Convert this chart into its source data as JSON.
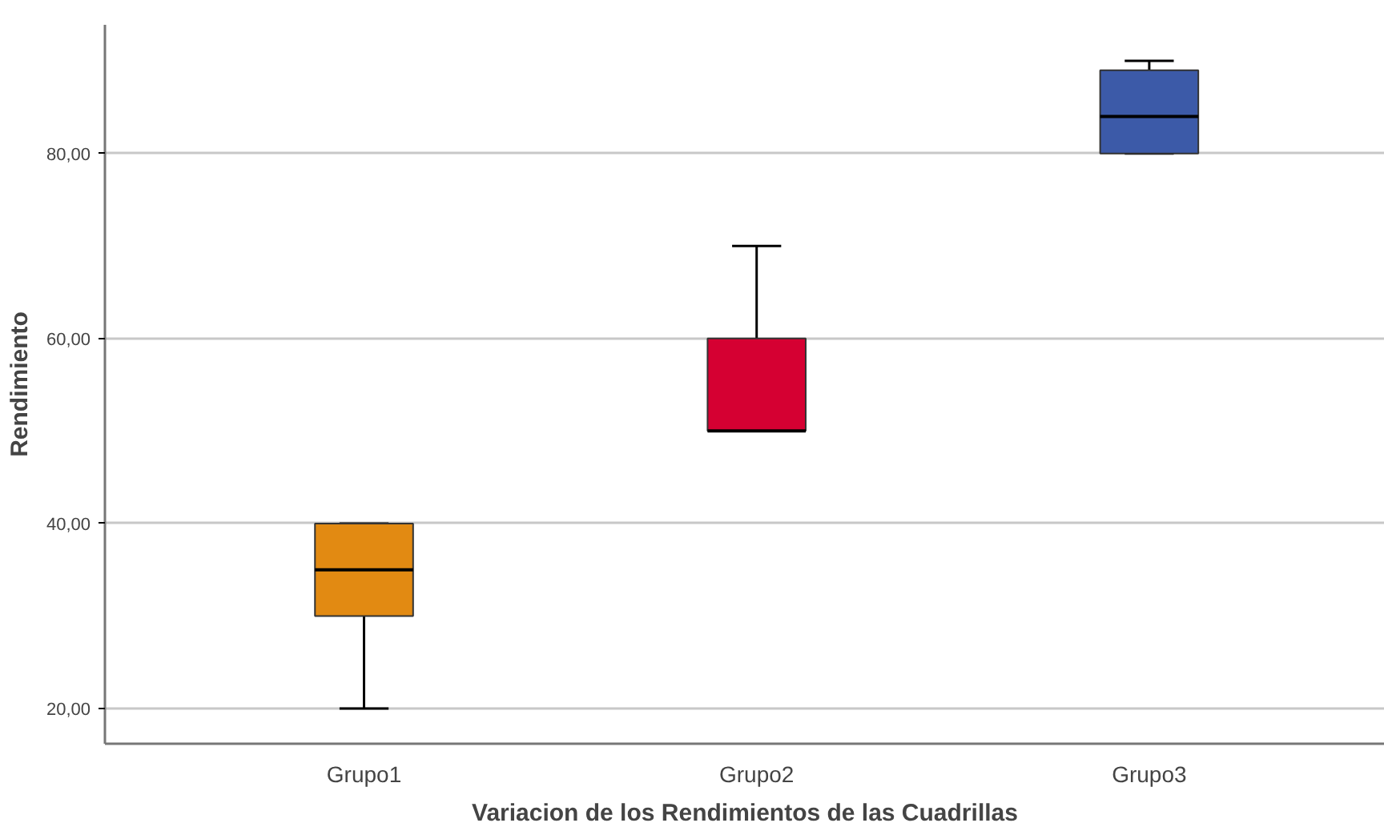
{
  "chart_data": {
    "type": "box",
    "xlabel": "Variacion de los Rendimientos de las Cuadrillas",
    "ylabel": "Rendimiento",
    "categories": [
      "Grupo1",
      "Grupo2",
      "Grupo3"
    ],
    "boxes": [
      {
        "low": 20,
        "q1": 30,
        "median": 35,
        "q3": 40,
        "high": 40
      },
      {
        "low": 50,
        "q1": 50,
        "median": 50,
        "q3": 60,
        "high": 70
      },
      {
        "low": 80,
        "q1": 80,
        "median": 84,
        "q3": 89,
        "high": 90
      }
    ],
    "colors": [
      "#e28a12",
      "#d50032",
      "#3c5aa8"
    ],
    "ylim": [
      16.2,
      93.9
    ],
    "yticks": [
      {
        "value": 20,
        "label": "20,00"
      },
      {
        "value": 40,
        "label": "40,00"
      },
      {
        "value": 60,
        "label": "60,00"
      },
      {
        "value": 80,
        "label": "80,00"
      }
    ],
    "grid": "y"
  }
}
